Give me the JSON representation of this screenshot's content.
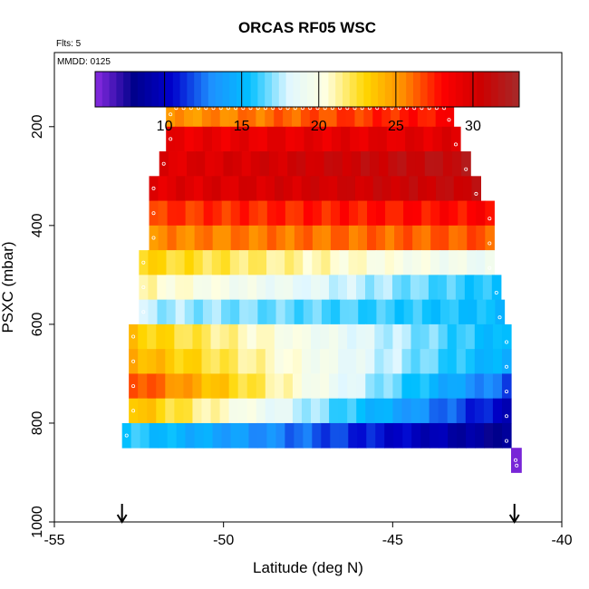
{
  "chart_data": {
    "type": "heatmap",
    "title": "ORCAS RF05 WSC",
    "subtitle_flts": "Flts: 5",
    "subtitle_mmdd": "MMDD: 0125",
    "xlabel": "Latitude (deg N)",
    "ylabel": "PSXC (mbar)",
    "xlim": [
      -55,
      -40
    ],
    "ylim": [
      1000,
      50
    ],
    "xticks": [
      -55,
      -50,
      -45,
      -40
    ],
    "xtick_labels": [
      "-55",
      "-50",
      "-45",
      "-40"
    ],
    "yticks": [
      200,
      400,
      600,
      800,
      1000
    ],
    "ytick_labels": [
      "200",
      "400",
      "600",
      "800",
      "1000"
    ],
    "colorbar": {
      "range": [
        5.5,
        33
      ],
      "ticks": [
        10,
        15,
        20,
        25,
        30
      ],
      "tick_labels": [
        "10",
        "15",
        "20",
        "25",
        "30"
      ],
      "colors": [
        "#8a2be2",
        "#00008b",
        "#0000cd",
        "#1e90ff",
        "#00bfff",
        "#e0f7ff",
        "#ffffe0",
        "#ffd700",
        "#ff8c00",
        "#ff0000",
        "#cd0000",
        "#a52a2a"
      ]
    },
    "band_height_mbar": 50,
    "bands": [
      {
        "p": 175,
        "lat_start": -51.7,
        "lat_end": -43.2,
        "start_value": 25,
        "end_value": 28
      },
      {
        "p": 225,
        "lat_start": -51.7,
        "lat_end": -43.0,
        "start_value": 29,
        "end_value": 29.5
      },
      {
        "p": 275,
        "lat_start": -51.9,
        "lat_end": -42.7,
        "start_value": 29.5,
        "end_value": 31.5
      },
      {
        "p": 325,
        "lat_start": -52.2,
        "lat_end": -42.4,
        "start_value": 29.5,
        "end_value": 31
      },
      {
        "p": 375,
        "lat_start": -52.2,
        "lat_end": -42.0,
        "start_value": 27,
        "end_value": 28
      },
      {
        "p": 425,
        "lat_start": -52.2,
        "lat_end": -42.0,
        "start_value": 25.5,
        "end_value": 26.5
      },
      {
        "p": 475,
        "lat_start": -52.5,
        "lat_end": -42.0,
        "start_value": 23,
        "end_value": 19
      },
      {
        "p": 525,
        "lat_start": -52.5,
        "lat_end": -41.8,
        "start_value": 21,
        "end_value": 15.5
      },
      {
        "p": 575,
        "lat_start": -52.5,
        "lat_end": -41.7,
        "start_value": 17.5,
        "end_value": 15.3
      },
      {
        "p": 625,
        "lat_start": -52.8,
        "lat_end": -41.5,
        "start_value": 23.5,
        "end_value": 15
      },
      {
        "p": 675,
        "lat_start": -52.8,
        "lat_end": -41.5,
        "start_value": 24.5,
        "end_value": 14.5
      },
      {
        "p": 725,
        "lat_start": -52.8,
        "lat_end": -41.5,
        "start_value": 27,
        "end_value": 12
      },
      {
        "p": 775,
        "lat_start": -52.8,
        "lat_end": -41.5,
        "start_value": 24,
        "end_value": 10
      },
      {
        "p": 825,
        "lat_start": -53.0,
        "lat_end": -41.5,
        "start_value": 16,
        "end_value": 8
      },
      {
        "p": 875,
        "lat_start": -41.5,
        "lat_end": -41.2,
        "start_value": 5.8,
        "end_value": 5.8
      }
    ],
    "arrows_lat": [
      -53.0,
      -41.4
    ]
  }
}
